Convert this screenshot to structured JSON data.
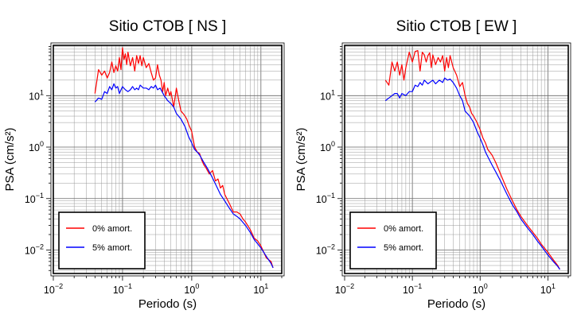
{
  "chart_data": [
    {
      "type": "line",
      "title": "Sitio CTOB [ NS ]",
      "xlabel": "Periodo (s)",
      "ylabel": "PSA (cm/s²)",
      "xscale": "log",
      "yscale": "log",
      "xlim": [
        0.01,
        20
      ],
      "ylim": [
        0.0035,
        95
      ],
      "grid": true,
      "legend_position": "bottom-left",
      "x_ticks": [
        {
          "base": "10",
          "exp": "−2",
          "value": 0.01
        },
        {
          "base": "10",
          "exp": "−1",
          "value": 0.1
        },
        {
          "base": "10",
          "exp": "0",
          "value": 1
        },
        {
          "base": "10",
          "exp": "1",
          "value": 10
        }
      ],
      "y_ticks": [
        {
          "base": "10",
          "exp": "1",
          "value": 10
        },
        {
          "base": "10",
          "exp": "0",
          "value": 1
        },
        {
          "base": "10",
          "exp": "−1",
          "value": 0.1
        },
        {
          "base": "10",
          "exp": "−2",
          "value": 0.01
        }
      ],
      "series": [
        {
          "name": "0% amort.",
          "color": "#ff0000",
          "x": [
            0.04,
            0.045,
            0.05,
            0.055,
            0.06,
            0.065,
            0.07,
            0.075,
            0.08,
            0.085,
            0.09,
            0.095,
            0.1,
            0.105,
            0.11,
            0.115,
            0.12,
            0.13,
            0.14,
            0.15,
            0.16,
            0.17,
            0.18,
            0.19,
            0.2,
            0.22,
            0.24,
            0.26,
            0.28,
            0.3,
            0.32,
            0.34,
            0.36,
            0.38,
            0.4,
            0.42,
            0.45,
            0.48,
            0.5,
            0.55,
            0.6,
            0.65,
            0.7,
            0.75,
            0.8,
            0.85,
            0.9,
            1.0,
            1.1,
            1.2,
            1.3,
            1.4,
            1.5,
            1.6,
            1.8,
            2.0,
            2.2,
            2.4,
            2.6,
            2.8,
            3.0,
            3.5,
            4.0,
            4.5,
            5.0,
            5.5,
            6.0,
            7.0,
            8.0,
            9.0,
            10.0,
            12.0,
            14.0,
            15.0
          ],
          "y": [
            11,
            32,
            25,
            30,
            22,
            28,
            45,
            28,
            38,
            30,
            55,
            32,
            85,
            50,
            65,
            40,
            70,
            38,
            55,
            30,
            60,
            42,
            60,
            38,
            55,
            35,
            42,
            28,
            20,
            22,
            40,
            25,
            20,
            12,
            18,
            10,
            14,
            10,
            12,
            6,
            14,
            8,
            5,
            4.5,
            4,
            3.5,
            2.8,
            2.0,
            1.0,
            0.8,
            0.75,
            0.55,
            0.45,
            0.4,
            0.3,
            0.35,
            0.22,
            0.24,
            0.16,
            0.18,
            0.12,
            0.08,
            0.055,
            0.055,
            0.05,
            0.04,
            0.035,
            0.025,
            0.017,
            0.015,
            0.012,
            0.007,
            0.006,
            0.0045
          ]
        },
        {
          "name": "5% amort.",
          "color": "#0000ff",
          "x": [
            0.04,
            0.045,
            0.05,
            0.055,
            0.06,
            0.065,
            0.07,
            0.075,
            0.08,
            0.085,
            0.09,
            0.1,
            0.11,
            0.12,
            0.13,
            0.14,
            0.15,
            0.16,
            0.17,
            0.18,
            0.2,
            0.22,
            0.24,
            0.26,
            0.28,
            0.3,
            0.32,
            0.35,
            0.4,
            0.45,
            0.5,
            0.55,
            0.6,
            0.7,
            0.8,
            0.9,
            1.0,
            1.1,
            1.2,
            1.3,
            1.5,
            1.7,
            2.0,
            2.3,
            2.6,
            3.0,
            3.5,
            4.0,
            4.5,
            5.0,
            6.0,
            7.0,
            8.0,
            10.0,
            12.0,
            14.0,
            15.0
          ],
          "y": [
            7.5,
            9,
            8.5,
            12,
            11,
            15,
            13,
            17,
            14,
            15,
            11,
            15,
            13,
            12,
            13,
            15,
            13,
            14,
            13,
            16,
            14,
            14,
            13,
            15,
            14,
            16,
            13,
            14,
            10,
            8,
            7,
            6,
            4.5,
            3.5,
            2.5,
            1.6,
            1.2,
            0.9,
            0.8,
            0.7,
            0.5,
            0.38,
            0.25,
            0.17,
            0.12,
            0.09,
            0.065,
            0.05,
            0.045,
            0.04,
            0.03,
            0.022,
            0.016,
            0.011,
            0.0075,
            0.0055,
            0.0045
          ]
        }
      ]
    },
    {
      "type": "line",
      "title": "Sitio CTOB [ EW ]",
      "xlabel": "Periodo (s)",
      "ylabel": "PSA (cm/s²)",
      "xscale": "log",
      "yscale": "log",
      "xlim": [
        0.01,
        20
      ],
      "ylim": [
        0.0035,
        95
      ],
      "grid": true,
      "legend_position": "bottom-left",
      "x_ticks": [
        {
          "base": "10",
          "exp": "−2",
          "value": 0.01
        },
        {
          "base": "10",
          "exp": "−1",
          "value": 0.1
        },
        {
          "base": "10",
          "exp": "0",
          "value": 1
        },
        {
          "base": "10",
          "exp": "1",
          "value": 10
        }
      ],
      "y_ticks": [
        {
          "base": "10",
          "exp": "1",
          "value": 10
        },
        {
          "base": "10",
          "exp": "0",
          "value": 1
        },
        {
          "base": "10",
          "exp": "−1",
          "value": 0.1
        },
        {
          "base": "10",
          "exp": "−2",
          "value": 0.01
        }
      ],
      "series": [
        {
          "name": "0% amort.",
          "color": "#ff0000",
          "x": [
            0.04,
            0.045,
            0.05,
            0.055,
            0.06,
            0.065,
            0.07,
            0.075,
            0.08,
            0.09,
            0.1,
            0.11,
            0.12,
            0.13,
            0.14,
            0.15,
            0.16,
            0.17,
            0.18,
            0.19,
            0.2,
            0.22,
            0.24,
            0.26,
            0.28,
            0.3,
            0.32,
            0.34,
            0.36,
            0.4,
            0.45,
            0.5,
            0.55,
            0.6,
            0.65,
            0.7,
            0.75,
            0.8,
            0.9,
            1.0,
            1.1,
            1.2,
            1.3,
            1.5,
            1.7,
            2.0,
            2.5,
            3.0,
            3.5,
            4.0,
            5.0,
            6.0,
            7.0,
            8.0,
            10.0,
            12.0,
            14.0,
            15.0
          ],
          "y": [
            20,
            16,
            45,
            30,
            45,
            25,
            40,
            20,
            35,
            70,
            45,
            72,
            75,
            30,
            70,
            62,
            45,
            60,
            68,
            35,
            62,
            40,
            55,
            45,
            60,
            30,
            55,
            35,
            60,
            35,
            25,
            15,
            18,
            10,
            7,
            6,
            4.5,
            4,
            3,
            2.2,
            1.5,
            1.2,
            0.9,
            0.7,
            0.5,
            0.3,
            0.15,
            0.09,
            0.06,
            0.045,
            0.03,
            0.022,
            0.017,
            0.013,
            0.009,
            0.0065,
            0.005,
            0.0042
          ]
        },
        {
          "name": "5% amort.",
          "color": "#0000ff",
          "x": [
            0.04,
            0.045,
            0.05,
            0.055,
            0.06,
            0.065,
            0.07,
            0.08,
            0.09,
            0.1,
            0.11,
            0.12,
            0.13,
            0.14,
            0.15,
            0.17,
            0.2,
            0.22,
            0.25,
            0.28,
            0.3,
            0.33,
            0.36,
            0.4,
            0.45,
            0.5,
            0.55,
            0.6,
            0.7,
            0.8,
            0.9,
            1.0,
            1.1,
            1.2,
            1.3,
            1.5,
            1.7,
            2.0,
            2.5,
            3.0,
            3.5,
            4.0,
            5.0,
            6.0,
            7.0,
            8.0,
            10.0,
            12.0,
            14.0,
            15.0
          ],
          "y": [
            8,
            9,
            10,
            11,
            11,
            9,
            11,
            10,
            12,
            12,
            16,
            15,
            18,
            16,
            20,
            17,
            20,
            17,
            20,
            18,
            22,
            20,
            21,
            18,
            14,
            10,
            8,
            5,
            4,
            3,
            2,
            1.5,
            1.1,
            0.8,
            0.65,
            0.45,
            0.33,
            0.22,
            0.12,
            0.075,
            0.055,
            0.04,
            0.027,
            0.02,
            0.015,
            0.012,
            0.008,
            0.006,
            0.0048,
            0.0042
          ]
        }
      ]
    }
  ]
}
